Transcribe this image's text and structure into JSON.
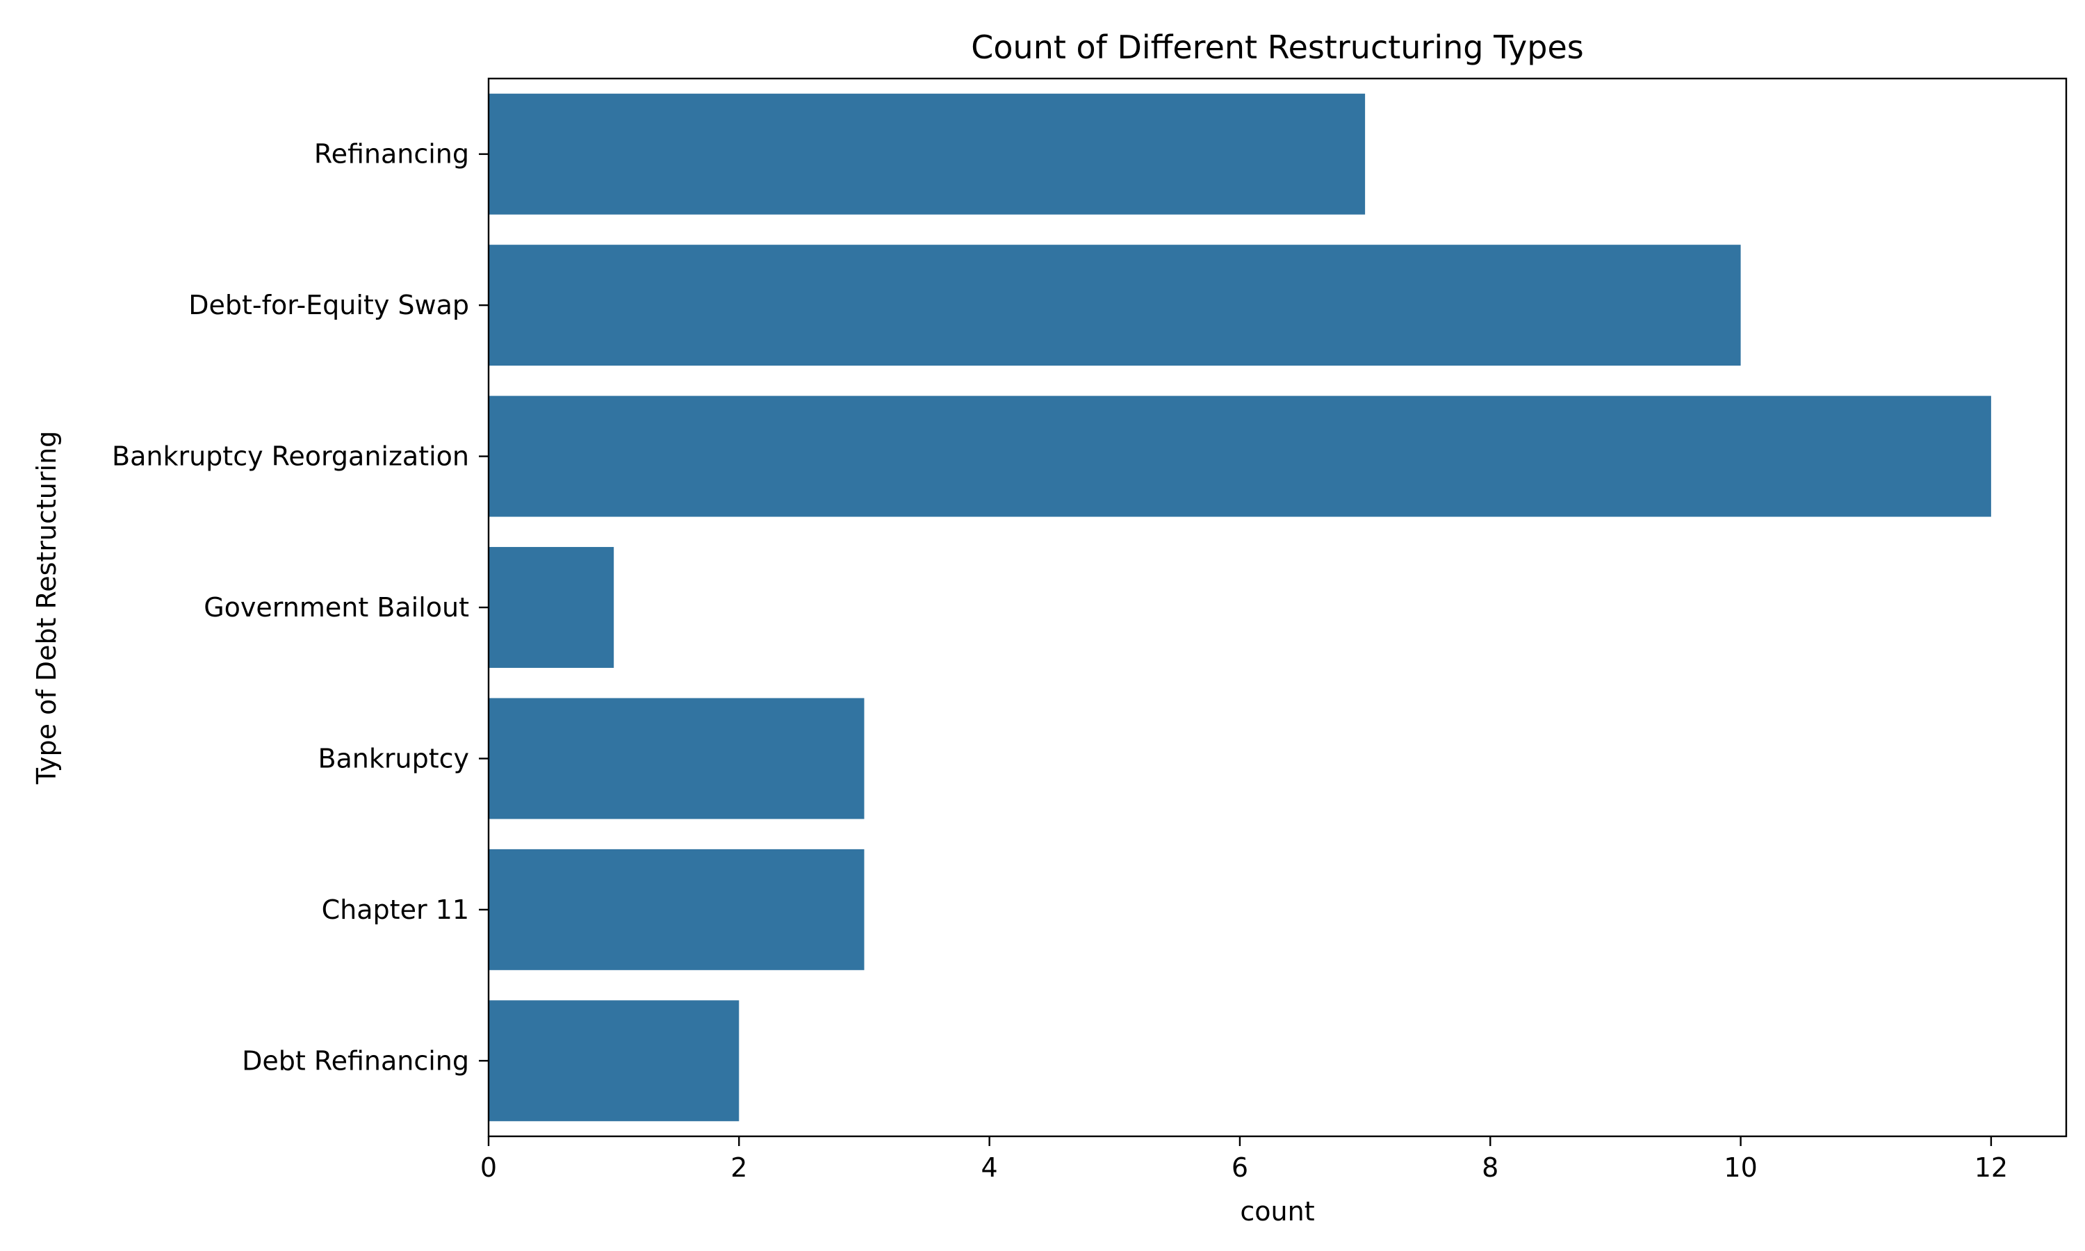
{
  "chart_data": {
    "type": "bar",
    "orientation": "horizontal",
    "title": "Count of Different Restructuring Types",
    "xlabel": "count",
    "ylabel": "Type of Debt Restructuring",
    "categories": [
      "Refinancing",
      "Debt-for-Equity Swap",
      "Bankruptcy Reorganization",
      "Government Bailout",
      "Bankruptcy",
      "Chapter 11",
      "Debt Refinancing"
    ],
    "values": [
      7,
      10,
      12,
      1,
      3,
      3,
      2
    ],
    "xlim": [
      0,
      12.6
    ],
    "xticks": [
      0,
      2,
      4,
      6,
      8,
      10,
      12
    ],
    "grid": false,
    "legend": "none",
    "bar_color": "#3274a1"
  }
}
